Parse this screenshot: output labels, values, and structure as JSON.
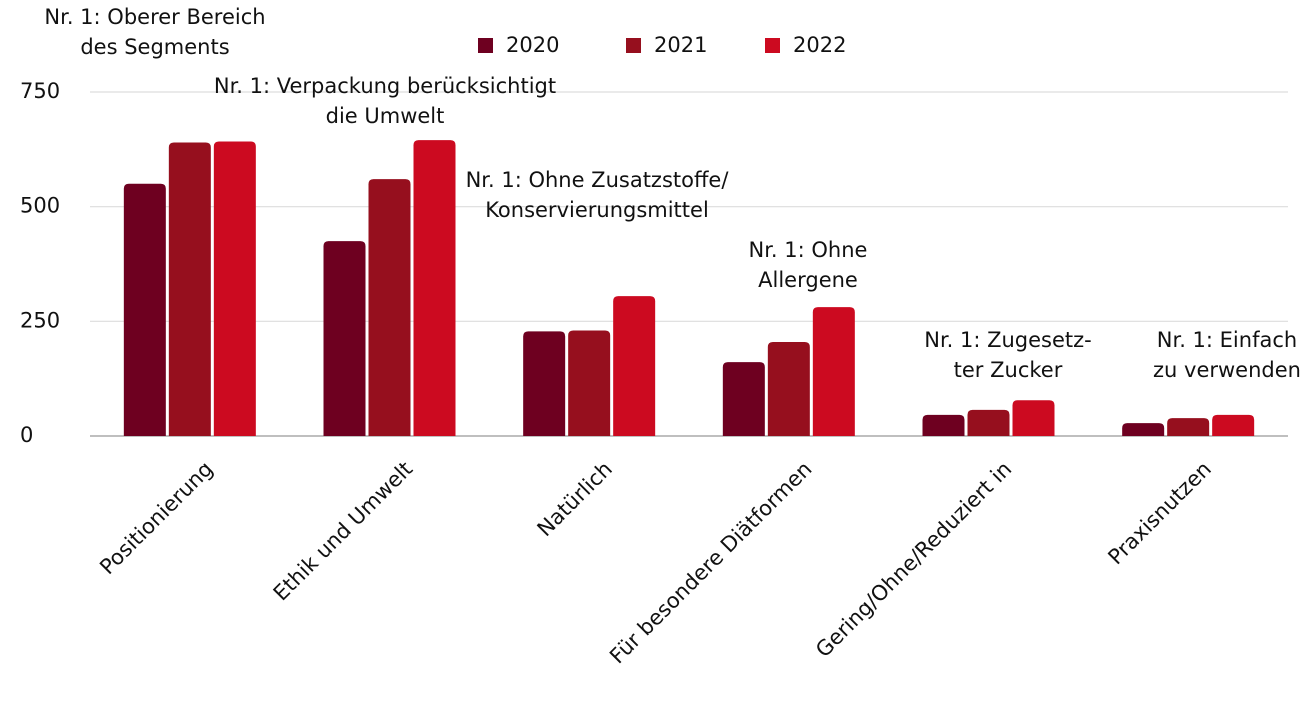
{
  "chart_data": {
    "type": "bar",
    "categories": [
      "Positionierung",
      "Ethik und Umwelt",
      "Natürlich",
      "Für besondere Diätformen",
      "Gering/Ohne/Reduziert in",
      "Praxisnutzen"
    ],
    "series": [
      {
        "name": "2020",
        "color": "#6e0020",
        "values": [
          550,
          425,
          228,
          161,
          46,
          28
        ]
      },
      {
        "name": "2021",
        "color": "#960f1e",
        "values": [
          640,
          560,
          230,
          205,
          57,
          39
        ]
      },
      {
        "name": "2022",
        "color": "#cc0a20",
        "values": [
          642,
          645,
          305,
          281,
          78,
          46
        ]
      }
    ],
    "annotations": [
      [
        "Nr. 1: Oberer Bereich",
        "des Segments"
      ],
      [
        "Nr. 1: Verpackung berücksichtigt",
        "die Umwelt"
      ],
      [
        "Nr. 1: Ohne Zusatzstoffe/",
        "Konservierungsmittel"
      ],
      [
        "Nr. 1: Ohne",
        "Allergene"
      ],
      [
        "Nr. 1: Zugesetz-",
        "ter Zucker"
      ],
      [
        "Nr. 1: Einfach",
        "zu verwenden"
      ]
    ],
    "ylim": [
      0,
      750
    ],
    "yticks": [
      0,
      250,
      500,
      750
    ],
    "grid": true,
    "legend": "top"
  }
}
